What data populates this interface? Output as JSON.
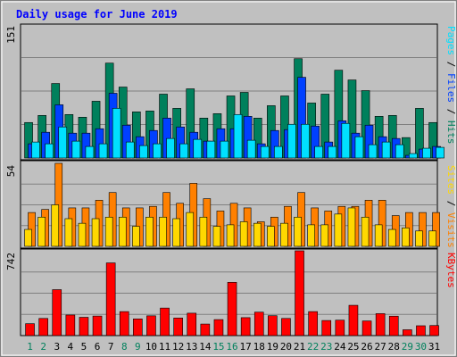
{
  "chart_data": {
    "type": "bar",
    "title": "Daily usage for June 2019",
    "categories": [
      "1",
      "2",
      "3",
      "4",
      "5",
      "6",
      "7",
      "8",
      "9",
      "10",
      "11",
      "12",
      "13",
      "14",
      "15",
      "16",
      "17",
      "18",
      "19",
      "20",
      "21",
      "22",
      "23",
      "24",
      "25",
      "26",
      "27",
      "28",
      "29",
      "30",
      "31"
    ],
    "weekend_days": [
      "1",
      "2",
      "8",
      "9",
      "15",
      "16",
      "22",
      "23",
      "29",
      "30"
    ],
    "panels": [
      {
        "name": "requests",
        "ymax": 151,
        "ymax_label": "151",
        "axis_labels": [
          "Pages",
          "Files",
          "Hits"
        ],
        "series": [
          {
            "name": "Hits",
            "color": "#00805c",
            "values": [
              40,
              48,
              84,
              49,
              46,
              64,
              107,
              80,
              52,
              53,
              72,
              56,
              78,
              45,
              50,
              70,
              74,
              45,
              59,
              70,
              112,
              62,
              72,
              99,
              88,
              76,
              47,
              48,
              23,
              56,
              40
            ]
          },
          {
            "name": "Files",
            "color": "#0040ff",
            "values": [
              16,
              29,
              60,
              28,
              28,
              33,
              73,
              37,
              24,
              31,
              45,
              35,
              29,
              19,
              33,
              33,
              47,
              16,
              31,
              32,
              91,
              36,
              18,
              42,
              28,
              37,
              24,
              22,
              3,
              10,
              13
            ]
          },
          {
            "name": "Pages",
            "color": "#00e0ff",
            "values": [
              18,
              16,
              35,
              19,
              13,
              16,
              56,
              18,
              14,
              16,
              22,
              16,
              21,
              19,
              19,
              49,
              20,
              13,
              13,
              38,
              38,
              13,
              13,
              39,
              24,
              15,
              18,
              15,
              5,
              11,
              12
            ]
          }
        ]
      },
      {
        "name": "visits",
        "ymax": 54,
        "ymax_label": "54",
        "axis_labels": [
          "Sites",
          "Visits"
        ],
        "series": [
          {
            "name": "Visits",
            "color": "#ff8000",
            "values": [
              22,
              24,
              54,
              25,
              25,
              30,
              35,
              25,
              25,
              26,
              35,
              28,
              41,
              31,
              23,
              28,
              25,
              16,
              19,
              26,
              35,
              25,
              23,
              26,
              26,
              30,
              30,
              20,
              22,
              22,
              22
            ]
          },
          {
            "name": "Sites",
            "color": "#ffd800",
            "values": [
              11,
              19,
              27,
              18,
              15,
              18,
              19,
              19,
              13,
              19,
              19,
              18,
              22,
              19,
              13,
              14,
              16,
              15,
              13,
              15,
              19,
              14,
              14,
              21,
              25,
              19,
              14,
              11,
              12,
              10,
              10
            ]
          }
        ]
      },
      {
        "name": "kbytes",
        "ymax": 742,
        "ymax_label": "742",
        "axis_labels": [
          "KBytes"
        ],
        "series": [
          {
            "name": "KBytes",
            "color": "#ff0000",
            "values": [
              104,
              150,
              402,
              180,
              160,
              171,
              636,
              210,
              146,
              173,
              241,
              154,
              196,
              101,
              140,
              466,
              157,
              205,
              174,
              150,
              742,
              210,
              132,
              135,
              265,
              128,
              192,
              170,
              51,
              86,
              88
            ]
          }
        ]
      }
    ],
    "colors": {
      "background": "#c0c0c0",
      "title": "#0000ff",
      "axis_text": "#000000",
      "weekday": "#000000",
      "weekend": "#00805c",
      "grid": "#808080",
      "separator": "#000000",
      "outline": "#000000"
    },
    "grid": true
  }
}
